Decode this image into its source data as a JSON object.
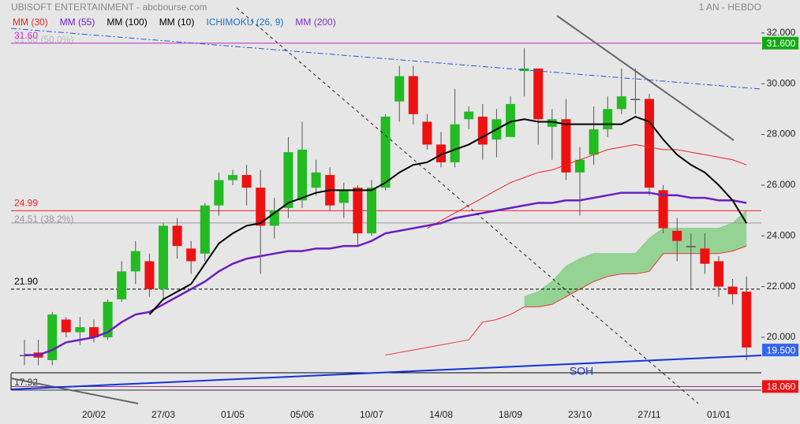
{
  "chart_data": {
    "type": "candlestick",
    "title": "UBISOFT ENTERTAINMENT - abcbourse.com",
    "period": "1 AN - HEBDO",
    "annotation": "SOH",
    "ylim": [
      17.39,
      33.3
    ],
    "yticks": [
      {
        "value": 20,
        "label": "20.000"
      },
      {
        "value": 22,
        "label": "22.000"
      },
      {
        "value": 24,
        "label": "24.000"
      },
      {
        "value": 26,
        "label": "26.000"
      },
      {
        "value": 28,
        "label": "28.000"
      },
      {
        "value": 30,
        "label": "30.000"
      },
      {
        "value": 32,
        "label": "32.000"
      }
    ],
    "up_color": "#22bb22",
    "down_color": "#ee1111",
    "categories": [
      null,
      null,
      null,
      null,
      null,
      "20/02",
      null,
      null,
      null,
      null,
      "27/03",
      null,
      null,
      null,
      null,
      "01/05",
      null,
      null,
      null,
      null,
      "05/06",
      null,
      null,
      null,
      null,
      "10/07",
      null,
      null,
      null,
      null,
      "14/08",
      null,
      null,
      null,
      null,
      "18/09",
      null,
      null,
      null,
      null,
      "23/10",
      null,
      null,
      null,
      null,
      "27/11",
      null,
      null,
      null,
      null,
      "01/01",
      null,
      null
    ],
    "open": [
      19.3,
      19.4,
      19.1,
      20.7,
      20.2,
      20.4,
      20.0,
      21.5,
      22.6,
      23.0,
      21.9,
      24.4,
      23.5,
      23.3,
      25.2,
      26.2,
      26.4,
      25.9,
      24.4,
      25.1,
      25.4,
      25.9,
      26.4,
      25.3,
      25.9,
      24.1,
      25.9,
      29.3,
      30.3,
      28.5,
      27.6,
      26.9,
      28.6,
      28.7,
      27.8,
      27.9,
      30.5,
      30.6,
      28.3,
      28.6,
      26.5,
      27.2,
      28.2,
      29.0,
      29.4,
      29.4,
      25.8,
      24.2,
      23.6,
      23.5,
      23.0,
      22.0,
      21.8
    ],
    "high": [
      19.9,
      19.9,
      21.0,
      20.8,
      20.8,
      20.7,
      21.5,
      23.0,
      23.8,
      23.3,
      24.5,
      24.7,
      23.8,
      25.3,
      26.5,
      26.6,
      26.8,
      26.6,
      25.5,
      27.9,
      28.5,
      27.0,
      26.7,
      26.1,
      26.0,
      26.2,
      28.8,
      30.7,
      30.7,
      28.8,
      28.1,
      29.8,
      29.1,
      29.2,
      29.0,
      29.5,
      31.4,
      30.6,
      29.0,
      29.4,
      27.5,
      29.1,
      29.5,
      30.6,
      30.6,
      29.6,
      26.0,
      24.7,
      24.1,
      24.1,
      23.2,
      22.3,
      22.4
    ],
    "low": [
      18.9,
      18.9,
      18.9,
      20.0,
      19.7,
      19.8,
      19.9,
      21.4,
      22.1,
      21.6,
      21.5,
      23.1,
      22.5,
      23.0,
      24.8,
      26.0,
      25.2,
      22.5,
      23.9,
      24.7,
      25.1,
      25.6,
      25.0,
      24.7,
      23.6,
      24.0,
      25.8,
      28.5,
      28.4,
      27.4,
      26.7,
      26.7,
      28.2,
      27.0,
      27.1,
      27.9,
      29.5,
      27.6,
      27.0,
      26.2,
      24.8,
      26.8,
      27.9,
      28.8,
      28.8,
      25.6,
      24.1,
      23.0,
      21.9,
      22.5,
      21.6,
      21.3,
      19.1
    ],
    "close": [
      19.3,
      19.2,
      20.9,
      20.2,
      20.4,
      20.0,
      21.4,
      22.6,
      23.4,
      21.9,
      24.4,
      23.6,
      23.0,
      25.2,
      26.2,
      26.4,
      25.9,
      24.4,
      25.0,
      27.3,
      27.4,
      26.5,
      25.2,
      25.8,
      24.1,
      25.9,
      28.7,
      30.3,
      28.8,
      27.6,
      26.9,
      28.4,
      28.9,
      27.6,
      28.6,
      29.2,
      30.6,
      28.6,
      28.6,
      26.5,
      27.0,
      28.2,
      29.0,
      29.5,
      29.4,
      25.9,
      24.3,
      23.8,
      23.6,
      22.9,
      22.0,
      21.7,
      19.6
    ],
    "series": [
      {
        "name": "MM (30)",
        "color": "#ee2222",
        "width": 1,
        "values": [
          null,
          null,
          null,
          null,
          null,
          null,
          null,
          null,
          null,
          null,
          null,
          null,
          null,
          null,
          null,
          null,
          null,
          null,
          null,
          null,
          null,
          null,
          null,
          null,
          null,
          null,
          null,
          null,
          null,
          24.3,
          24.6,
          24.9,
          25.2,
          25.5,
          25.8,
          26.1,
          26.3,
          26.5,
          26.6,
          26.8,
          27.0,
          27.2,
          27.4,
          27.5,
          27.6,
          27.5,
          27.4,
          27.4,
          27.3,
          27.2,
          27.1,
          27.0,
          26.8
        ]
      },
      {
        "name": "MM (55)",
        "color": "#6a1fc0",
        "width": 2.5,
        "values": [
          19.3,
          19.3,
          19.5,
          19.8,
          19.9,
          20.0,
          20.2,
          20.6,
          20.9,
          21.0,
          21.3,
          21.6,
          21.9,
          22.2,
          22.6,
          22.9,
          23.1,
          23.2,
          23.3,
          23.4,
          23.4,
          23.5,
          23.5,
          23.6,
          23.6,
          23.8,
          24.1,
          24.2,
          24.3,
          24.4,
          24.5,
          24.7,
          24.8,
          24.9,
          25.0,
          25.1,
          25.2,
          25.3,
          25.3,
          25.4,
          25.4,
          25.5,
          25.6,
          25.7,
          25.7,
          25.7,
          25.6,
          25.6,
          25.5,
          25.5,
          25.4,
          25.4,
          25.3
        ]
      },
      {
        "name": "MM (100)",
        "color": "#000000"
      },
      {
        "name": "MM (10)",
        "color": "#000000",
        "width": 2,
        "values": [
          null,
          null,
          null,
          null,
          null,
          null,
          null,
          null,
          null,
          20.9,
          21.5,
          21.8,
          22.1,
          22.9,
          23.7,
          24.1,
          24.4,
          24.5,
          24.9,
          25.3,
          25.5,
          25.7,
          25.8,
          25.8,
          25.8,
          25.8,
          26.1,
          26.5,
          26.8,
          26.9,
          27.2,
          27.4,
          27.6,
          27.9,
          28.2,
          28.5,
          28.6,
          28.5,
          28.5,
          28.4,
          28.4,
          28.4,
          28.4,
          28.4,
          28.7,
          28.5,
          27.8,
          27.2,
          26.8,
          26.5,
          26.0,
          25.4,
          24.5
        ]
      },
      {
        "name": "ICHIMOKU (26, 9)",
        "color": "#1e6fd0",
        "fill": "#86cf86",
        "edge": "#ee3333",
        "upper": [
          null,
          null,
          null,
          null,
          null,
          null,
          null,
          null,
          null,
          null,
          null,
          null,
          null,
          null,
          null,
          null,
          null,
          null,
          null,
          null,
          null,
          null,
          null,
          null,
          null,
          null,
          null,
          null,
          null,
          null,
          null,
          null,
          null,
          null,
          null,
          null,
          21.6,
          21.8,
          22.2,
          22.8,
          23.1,
          23.3,
          23.3,
          23.3,
          23.3,
          23.9,
          24.3,
          24.3,
          24.3,
          24.3,
          24.3,
          24.5,
          25.0
        ],
        "lower": [
          null,
          null,
          null,
          null,
          null,
          null,
          null,
          null,
          null,
          null,
          null,
          null,
          null,
          null,
          null,
          null,
          null,
          null,
          null,
          null,
          null,
          null,
          null,
          null,
          null,
          null,
          19.3,
          19.4,
          19.5,
          19.6,
          19.7,
          19.8,
          19.9,
          20.6,
          20.7,
          20.9,
          21.2,
          21.2,
          21.3,
          21.6,
          21.9,
          22.2,
          22.4,
          22.5,
          22.5,
          22.6,
          23.3,
          23.3,
          23.3,
          23.3,
          23.3,
          23.4,
          23.6
        ]
      },
      {
        "name": "MM (200)",
        "color": "#7a2fc0"
      }
    ],
    "levels": [
      {
        "value": 31.6,
        "label": "31.60 (50.0%)",
        "color": "#bbbbbb",
        "style": "solid"
      },
      {
        "value": 31.6,
        "label": "31.60",
        "color": "#cc33cc",
        "style": "solid"
      },
      {
        "value": 24.99,
        "label": "24.99",
        "color": "#ee2222",
        "style": "solid"
      },
      {
        "value": 24.51,
        "label": "24.51 (38.2%)",
        "color": "#999999",
        "style": "solid"
      },
      {
        "value": 21.9,
        "label": "21.90",
        "color": "#000000",
        "style": "dashed"
      },
      {
        "value": 18.6,
        "color": "#000000",
        "style": "solid"
      },
      {
        "value": 18.06,
        "color": "#993399",
        "style": "solid"
      },
      {
        "value": 17.92,
        "label": "17.92",
        "color": "#333333",
        "style": "solid"
      }
    ],
    "price_tags": [
      {
        "value": 31.6,
        "label": "31.600",
        "color": "#11aa11"
      },
      {
        "value": 19.5,
        "label": "19.500",
        "color": "#3366ee"
      },
      {
        "value": 18.06,
        "label": "18.060",
        "color": "#ee1111"
      }
    ]
  }
}
